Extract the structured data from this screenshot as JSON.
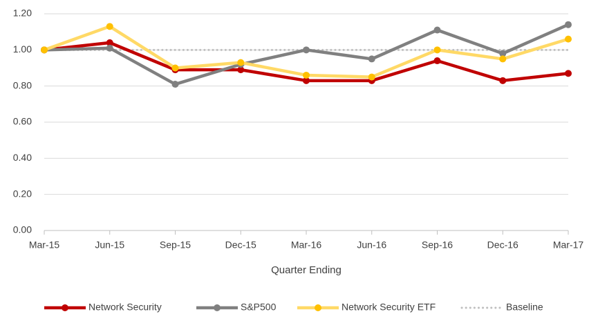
{
  "chart_data": {
    "type": "line",
    "x_label": "Quarter Ending",
    "categories": [
      "Mar-15",
      "Jun-15",
      "Sep-15",
      "Dec-15",
      "Mar-16",
      "Jun-16",
      "Sep-16",
      "Dec-16",
      "Mar-17"
    ],
    "series": [
      {
        "name": "Network Security",
        "color": "#c00000",
        "marker": true,
        "values": [
          1.0,
          1.04,
          0.89,
          0.89,
          0.83,
          0.83,
          0.94,
          0.83,
          0.87
        ]
      },
      {
        "name": "S&P500",
        "color": "#808080",
        "marker": true,
        "values": [
          1.0,
          1.01,
          0.81,
          0.92,
          1.0,
          0.95,
          1.11,
          0.98,
          1.14
        ]
      },
      {
        "name": "Network Security ETF",
        "color": "#ffd966",
        "marker_color": "#ffc000",
        "marker": true,
        "values": [
          1.0,
          1.13,
          0.9,
          0.93,
          0.86,
          0.85,
          1.0,
          0.95,
          1.06
        ]
      },
      {
        "name": "Baseline",
        "color": "#bfbfbf",
        "marker": false,
        "dotted": true,
        "values": [
          1,
          1,
          1,
          1,
          1,
          1,
          1,
          1,
          1
        ]
      }
    ],
    "ylim": [
      0,
      1.2
    ],
    "yticks": [
      {
        "value": 0,
        "label": "0.00"
      },
      {
        "value": 0.2,
        "label": "0.20"
      },
      {
        "value": 0.4,
        "label": "0.40"
      },
      {
        "value": 0.6,
        "label": "0.60"
      },
      {
        "value": 0.8,
        "label": "0.80"
      },
      {
        "value": 1,
        "label": "1.00"
      },
      {
        "value": 1.2,
        "label": "1.20"
      }
    ],
    "grid": true,
    "legend": "bottom"
  }
}
